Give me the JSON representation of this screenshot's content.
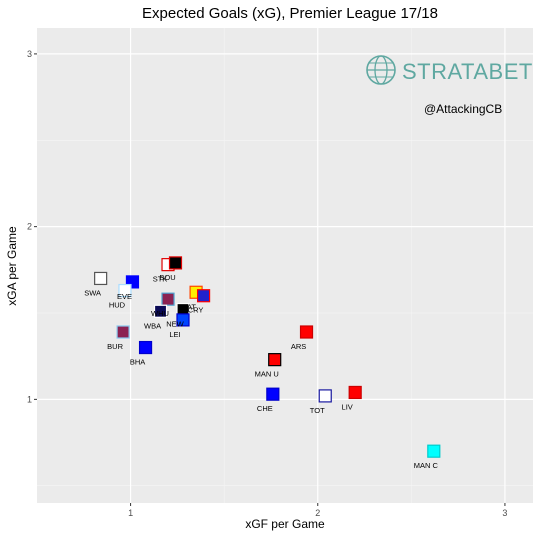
{
  "chart_data": {
    "type": "scatter",
    "title": "Expected Goals (xG), Premier League 17/18",
    "xlabel": "xGF per Game",
    "ylabel": "xGA per Game",
    "xlim": [
      0.5,
      3.15
    ],
    "ylim": [
      0.4,
      3.15
    ],
    "xticks": [
      1,
      2,
      3
    ],
    "yticks": [
      1,
      2,
      3
    ],
    "grid": true,
    "points": [
      {
        "label": "SWA",
        "x": 0.84,
        "y": 1.7,
        "fill": "#ffffff",
        "stroke": "#555555"
      },
      {
        "label": "EVE",
        "x": 1.01,
        "y": 1.68,
        "fill": "#0000ff",
        "stroke": "#0000ff"
      },
      {
        "label": "HUD",
        "x": 0.97,
        "y": 1.63,
        "fill": "#ffffff",
        "stroke": "#aaddff"
      },
      {
        "label": "STK",
        "x": 1.2,
        "y": 1.78,
        "fill": "#ffffff",
        "stroke": "#e00000"
      },
      {
        "label": "BOU",
        "x": 1.24,
        "y": 1.79,
        "fill": "#000000",
        "stroke": "#e00000"
      },
      {
        "label": "WHU",
        "x": 1.2,
        "y": 1.58,
        "fill": "#8b2252",
        "stroke": "#4fa3d1"
      },
      {
        "label": "WAT",
        "x": 1.35,
        "y": 1.62,
        "fill": "#ffee00",
        "stroke": "#ff4400"
      },
      {
        "label": "CRY",
        "x": 1.39,
        "y": 1.6,
        "fill": "#2222cc",
        "stroke": "#ff0000"
      },
      {
        "label": "WBA",
        "x": 1.16,
        "y": 1.51,
        "fill": "#0a0a55",
        "stroke": "#ffffff"
      },
      {
        "label": "NEW",
        "x": 1.28,
        "y": 1.52,
        "fill": "#000000",
        "stroke": "#ffffff"
      },
      {
        "label": "LEI",
        "x": 1.28,
        "y": 1.46,
        "fill": "#0044ff",
        "stroke": "#0000cc"
      },
      {
        "label": "BUR",
        "x": 0.96,
        "y": 1.39,
        "fill": "#8b2252",
        "stroke": "#88c8ee"
      },
      {
        "label": "BHA",
        "x": 1.08,
        "y": 1.3,
        "fill": "#0000ff",
        "stroke": "#0000cc"
      },
      {
        "label": "ARS",
        "x": 1.94,
        "y": 1.39,
        "fill": "#ff0000",
        "stroke": "#cc0000"
      },
      {
        "label": "MAN U",
        "x": 1.77,
        "y": 1.23,
        "fill": "#ff0000",
        "stroke": "#000000"
      },
      {
        "label": "CHE",
        "x": 1.76,
        "y": 1.03,
        "fill": "#0000ff",
        "stroke": "#0000cc"
      },
      {
        "label": "TOT",
        "x": 2.04,
        "y": 1.02,
        "fill": "#ffffff",
        "stroke": "#1a1aa0"
      },
      {
        "label": "LIV",
        "x": 2.2,
        "y": 1.04,
        "fill": "#ff0000",
        "stroke": "#cc0000"
      },
      {
        "label": "MAN C",
        "x": 2.62,
        "y": 0.7,
        "fill": "#00ffff",
        "stroke": "#00cccc"
      }
    ]
  },
  "watermark": {
    "brand": "STRATABET",
    "handle": "@AttackingCB",
    "icon": "globe-icon",
    "brand_color": "#5fa8a1"
  }
}
